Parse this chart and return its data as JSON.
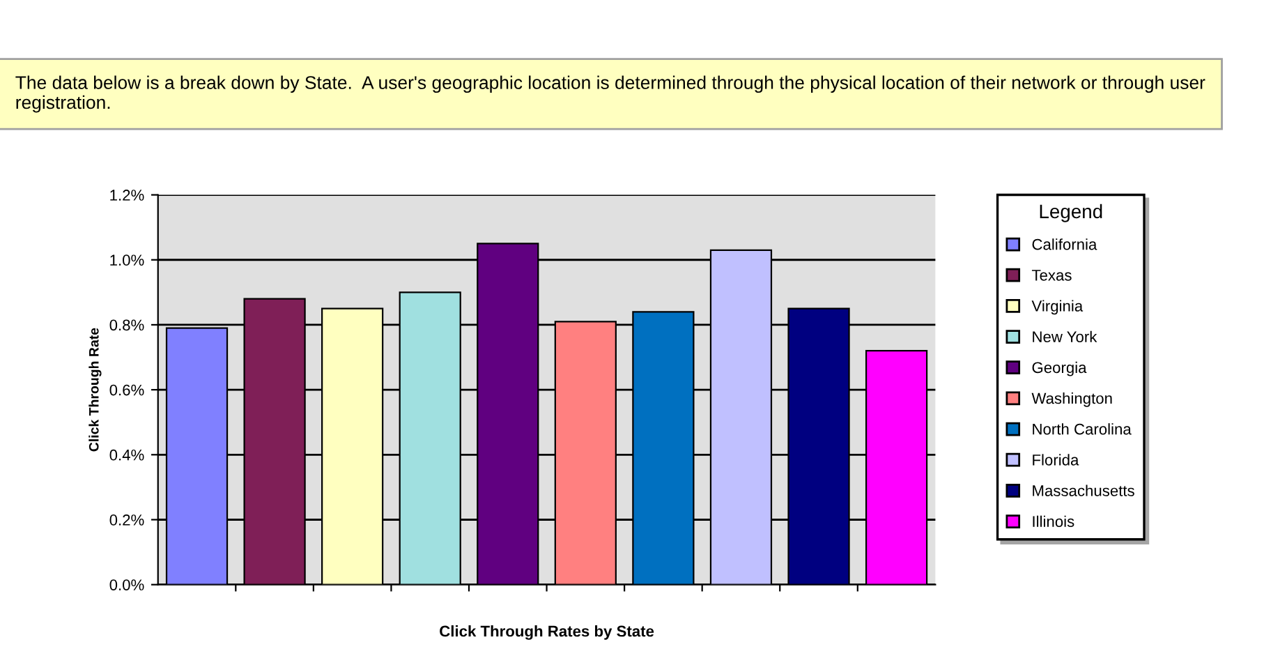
{
  "chart_data": {
    "type": "bar",
    "title": "The data below is a break down by State.  A user's geographic location is determined through the physical location of their network or through user registration.",
    "xlabel": "Click Through Rates by State",
    "ylabel": "Click Through Rate",
    "legend_title": "Legend",
    "categories": [
      null,
      null,
      null,
      null,
      null,
      null,
      null,
      null,
      null,
      null
    ],
    "series": [
      {
        "name": "California",
        "color": "#8080ff",
        "values": [
          0.79,
          null,
          null,
          null,
          null,
          null,
          null,
          null,
          null,
          null
        ]
      },
      {
        "name": "Texas",
        "color": "#7f1f57",
        "values": [
          null,
          0.88,
          null,
          null,
          null,
          null,
          null,
          null,
          null,
          null
        ]
      },
      {
        "name": "Virginia",
        "color": "#ffffc0",
        "values": [
          null,
          null,
          0.85,
          null,
          null,
          null,
          null,
          null,
          null,
          null
        ]
      },
      {
        "name": "New York",
        "color": "#a0e0e0",
        "values": [
          null,
          null,
          null,
          0.9,
          null,
          null,
          null,
          null,
          null,
          null
        ]
      },
      {
        "name": "Georgia",
        "color": "#600080",
        "values": [
          null,
          null,
          null,
          null,
          1.05,
          null,
          null,
          null,
          null,
          null
        ]
      },
      {
        "name": "Washington",
        "color": "#ff8080",
        "values": [
          null,
          null,
          null,
          null,
          null,
          0.81,
          null,
          null,
          null,
          null
        ]
      },
      {
        "name": "North Carolina",
        "color": "#0070c0",
        "values": [
          null,
          null,
          null,
          null,
          null,
          null,
          0.84,
          null,
          null,
          null
        ]
      },
      {
        "name": "Florida",
        "color": "#c0c0ff",
        "values": [
          null,
          null,
          null,
          null,
          null,
          null,
          null,
          1.03,
          null,
          null
        ]
      },
      {
        "name": "Massachusetts",
        "color": "#000080",
        "values": [
          null,
          null,
          null,
          null,
          null,
          null,
          null,
          null,
          0.85,
          null
        ]
      },
      {
        "name": "Illinois",
        "color": "#ff00ff",
        "values": [
          null,
          null,
          null,
          null,
          null,
          null,
          null,
          null,
          null,
          0.72
        ]
      }
    ],
    "ylim": [
      0,
      1.2
    ],
    "yticks": [
      {
        "value": 0,
        "label": "0.0%"
      },
      {
        "value": 0.2,
        "label": "0.2%"
      },
      {
        "value": 0.4,
        "label": "0.4%"
      },
      {
        "value": 0.6,
        "label": "0.6%"
      },
      {
        "value": 0.8,
        "label": "0.8%"
      },
      {
        "value": 1.0,
        "label": "1.0%"
      },
      {
        "value": 1.2,
        "label": "1.2%"
      }
    ],
    "grid": "y",
    "legend": "right"
  }
}
